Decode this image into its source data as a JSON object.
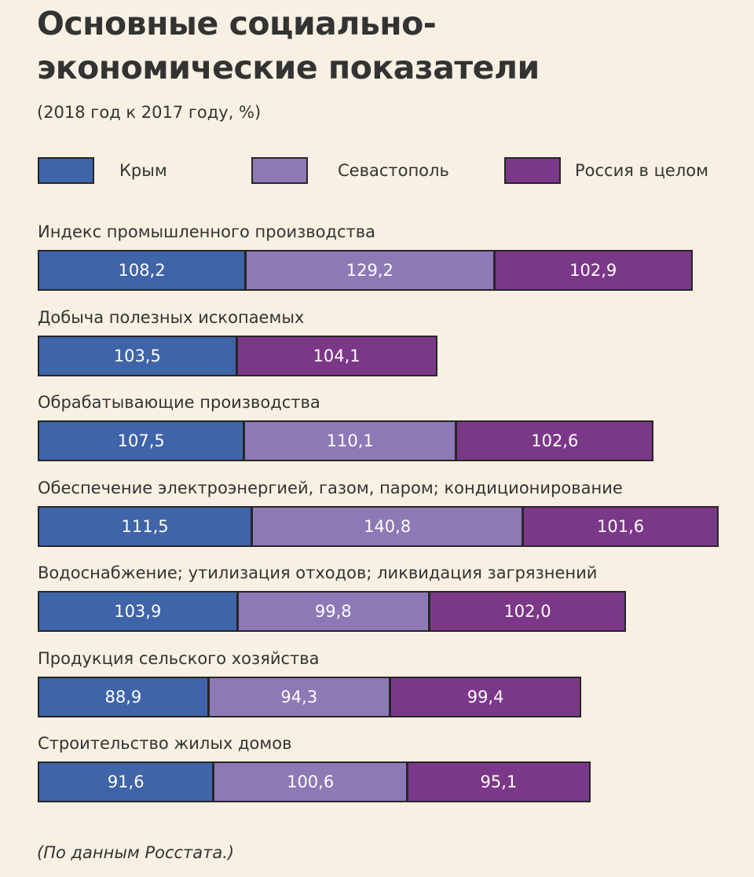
{
  "title": {
    "line1": "Основные социально-",
    "line2": "экономические показатели"
  },
  "subtitle": "(2018 год к 2017 году, %)",
  "legend": [
    {
      "label": "Крым",
      "color": "#3f64a8"
    },
    {
      "label": "Севастополь",
      "color": "#8d79b6"
    },
    {
      "label": "Россия в целом",
      "color": "#7c3888"
    }
  ],
  "source": "(По данным Росстата.)",
  "chart_data": {
    "type": "bar",
    "orientation": "horizontal-stacked",
    "series_names": [
      "Крым",
      "Севастополь",
      "Россия в целом"
    ],
    "categories": [
      "Индекс промышленного производства",
      "Добыча полезных ископаемых",
      "Обрабатывающие производства",
      "Обеспечение электроэнергией, газом, паром; кондиционирование",
      "Водоснабжение; утилизация отходов; ликвидация загрязнений",
      "Продукция сельского хозяйства",
      "Строительство жилых домов"
    ],
    "values": [
      {
        "Крым": "108,2",
        "Севастополь": "129,2",
        "Россия в целом": "102,9"
      },
      {
        "Крым": "103,5",
        "Севастополь": null,
        "Россия в целом": "104,1"
      },
      {
        "Крым": "107,5",
        "Севастополь": "110,1",
        "Россия в целом": "102,6"
      },
      {
        "Крым": "111,5",
        "Севастополь": "140,8",
        "Россия в целом": "101,6"
      },
      {
        "Крым": "103,9",
        "Севастополь": "99,8",
        "Россия в целом": "102,0"
      },
      {
        "Крым": "88,9",
        "Севастополь": "94,3",
        "Россия в целом": "99,4"
      },
      {
        "Крым": "91,6",
        "Севастополь": "100,6",
        "Россия в целом": "95,1"
      }
    ],
    "unit": "%"
  }
}
